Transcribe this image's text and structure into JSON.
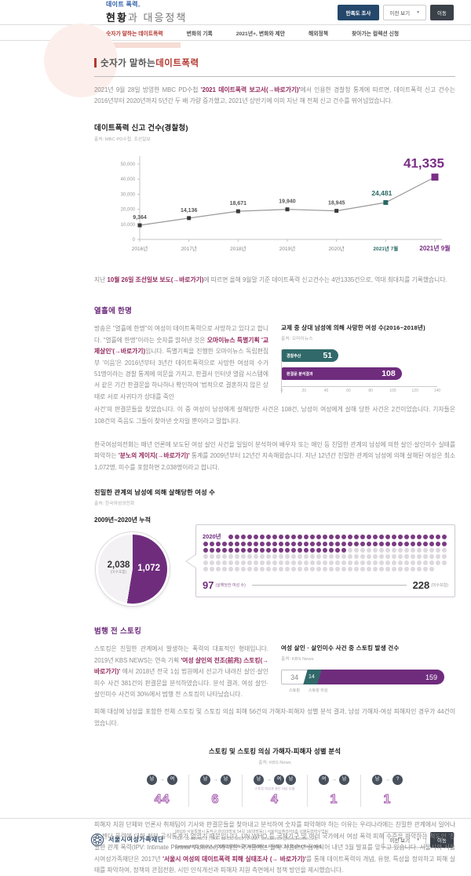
{
  "header": {
    "brand_line1": "데이트 폭력,",
    "brand_line2_strong": "현황",
    "brand_line2_rest": "과 대응정책",
    "survey_button": "만족도 조사",
    "prev_select_label": "이전 보기",
    "go_button": "이동"
  },
  "nav": {
    "items": [
      {
        "label": "숫자가 말하는 데이트폭력",
        "active": true
      },
      {
        "label": "변화의 기록",
        "active": false
      },
      {
        "label": "2021년+, 변화와 제안",
        "active": false
      },
      {
        "label": "해외정책",
        "active": false
      },
      {
        "label": "찾아가는 컬렉션 신청",
        "active": false
      }
    ]
  },
  "main": {
    "title_normal": "숫자가 말하는 ",
    "title_accent": "데이트폭력",
    "intro": [
      {
        "t": "2021년 9월 28일 방영한 MBC PD수첩 "
      },
      {
        "t": "'2021 데이트폭력 보고서(→바로가기)'",
        "b": true
      },
      {
        "t": "에서 인용한 경찰청 통계에 따르면, 데이트폭력 신고 건수는 2016년부터 2020년까지 5년간 두 배 가량 증가했고, 2021년 상반기에 이미 지난 해 전체 신고 건수를 뛰어넘었습니다."
      }
    ],
    "after_line_chart": [
      {
        "t": "지난 "
      },
      {
        "t": "10월 26일 조선일보 보도(→바로가기)",
        "b": true
      },
      {
        "t": "에 따르면 올해 9월말 기준 데이트폭력 신고건수는 4만1335건으로, 역대 최대치를 기록했습니다."
      }
    ],
    "sec_ten_days": {
      "heading": "열흘에 한명",
      "left": [
        {
          "t": "방송은 \"열흘에 한명\"의 여성이 데이트폭력으로 사망하고 있다고 합니다. \"열흘에 한명\"이라는 숫자를 밝혀낸 것은 "
        },
        {
          "t": "오마이뉴스 특별기획 '교제살인'(→바로가기)",
          "b": true
        },
        {
          "t": "입니다. 특별기획을 진행한 오마이뉴스 독립편집부 '이음'은 2016년부터 3년간 데이트폭력으로 사망한 여성의 수가 51명이라는 경찰 통계에 의문을 가지고, 판결서 인터넷 열람 시스템에서 같은 기간 판결문을 하나하나 확인하여 '법적으로 결혼하지 않은 상태로 서로 사귀다가 상대를 죽인"
        }
      ],
      "continued": "사건'의 판결문들을 찾았습니다. 이 중 여성이 남성에게 살해당한 사건은 108건, 남성이 여성에게 살해 당한 사건은 2건이었습니다. 기자들은 108건의 죽음도 그들이 찾아낸 숫자일 뿐이라고 말합니다."
    },
    "p_hotline": [
      {
        "t": "한국여성의전화는 매년 언론에 보도된 여성 살인 사건을 일일이 분석하여 배우자 또는 애인 등 친밀한 관계의 남성에 의한 살인·살인미수 실태를 파악하는 "
      },
      {
        "t": "'분노의 게이지(→바로가기)'",
        "b": true
      },
      {
        "t": " 통계를 2009년부터 12년간 지속해왔습니다. 지난 12년간 친밀한 관계의 남성에 의해 살해된 여성은 최소 1,072명, 미수를 포함하면 2,038명이라고 합니다."
      }
    ],
    "sec_stalking": {
      "heading": "범행 전 스토킹",
      "left": [
        {
          "t": "스토킹은 친밀한 관계에서 발생하는 폭력의 대표적인 형태입니다. 2019년 KBS NEWS는 연속 기획 "
        },
        {
          "t": "'여성 살인의 전조(前兆) 스토킹(→바로가기)'",
          "b": true
        },
        {
          "t": " 에서 2018년 전국 1심 법원에서 선고가 내려진 살인·살인미수 사건 381건의 판결문을 분석하였습니다. 분석 결과, 여성 살인·살인미수 사건의 30%에서 범행 전 스토킹이 나타났습니다."
        }
      ],
      "after": "피해 대상에 남성을 포함한 전체 스토킹 및 스토킹 의심 피해 56건의 가해자-피해자 성별 분석 결과, 남성 가해자-여성 피해자인 경우가 44건이었습니다."
    },
    "final": [
      {
        "t": "피해자 지원 단체와 언론사 취재팀이 기사와 판결문들을 찾아내고 분석하여 숫자를 파악해야 하는 이유는 우리나라에는 친밀한 관계에서 일어나는 젠더 폭력에 대한 정부 공식통계가 없었기 때문입니다. UN·WHO 등 국제기구 및 여러 국가에서 여성 폭력 피해 수준을 파악하는 척도인 '친밀한 관계 폭력(IPV: Intimate Partner Violence)'에 대한 국가통계는 올해 처음으로 집계되어 내년 3월 발표를 앞두고 있습니다. 서울시와 서울시여성가족재단은 2017년 "
      },
      {
        "t": "'서울시 여성의 데이트폭력 피해 실태조사 (→ 바로가기)'",
        "b": true
      },
      {
        "t": "를 통해 데이트폭력의 개념, 유형, 특성을 정의하고 피해 실태를 파악하여, 정책의 관점전환, 시민 인식개선과 피해자 지원 측면에서 정책 방안을 제시했습니다."
      }
    ]
  },
  "chart_data": [
    {
      "type": "line",
      "title": "데이트폭력 신고 건수(경찰청)",
      "source": "출처: MBC PD수첩, 조선일보",
      "categories": [
        "2016년",
        "2017년",
        "2018년",
        "2019년",
        "2020년",
        "2021년 7월",
        "2021년 9월"
      ],
      "values": [
        9364,
        14136,
        18671,
        19940,
        18945,
        24481,
        41335
      ],
      "labels": [
        "9,364",
        "14,136",
        "18,671",
        "19,940",
        "18,945",
        "24,481",
        "41,335"
      ],
      "ylim": [
        0,
        50000
      ],
      "yticks": [
        "0",
        "10,000",
        "20,000",
        "30,000",
        "40,000",
        "50,000"
      ],
      "highlight_teal_index": 5,
      "highlight_purple_index": 6
    },
    {
      "type": "hbar",
      "title": "교제 중 상대 남성에 의해 사망한 여성 수(2016~2018년)",
      "source": "출처: 오마이뉴스",
      "categories": [
        "경찰추산",
        "판결문 분석결과"
      ],
      "values": [
        51,
        108
      ],
      "colors": [
        "#31696a",
        "#6f2c7d"
      ],
      "xlim": [
        0,
        140
      ],
      "xticks": [
        0,
        20,
        40,
        60,
        80,
        100,
        120,
        140
      ]
    },
    {
      "type": "pie_waffle",
      "title": "친밀한 관계의 남성에 의해 살해당한 여성 수",
      "source": "출처: 한국여성의전화",
      "cumulative_label": "2009년~2020년 누적",
      "cumulative_total": 2038,
      "cumulative_total_label": "2,038",
      "cumulative_note": "(미수포함)",
      "killed": 1072,
      "killed_label": "1,072",
      "year": "2020년",
      "year_killed": 97,
      "year_killed_label": "97",
      "year_killed_note": "(살해당한 여성 수)",
      "year_total": 228,
      "year_total_label": "228",
      "year_total_note": "(미수포함)"
    },
    {
      "type": "stacked",
      "title": "여성 살인 · 살인미수 사건 중 스토킹 발생 건수",
      "source": "출처: KBS News",
      "segments": [
        {
          "label": "스토킹",
          "value": 34
        },
        {
          "label": "스토킹 의심",
          "value": 14
        },
        {
          "label": "",
          "value": 159
        }
      ]
    },
    {
      "type": "gender",
      "title": "스토킹 및 스토킹 의심 가해자-피해자 성별 분석",
      "source": "출처: KBS News",
      "groups": [
        {
          "from": [
            "남"
          ],
          "to": [
            "여"
          ],
          "note": "",
          "value": "44"
        },
        {
          "from": [
            "남"
          ],
          "to": [
            "남"
          ],
          "note": "",
          "value": "6"
        },
        {
          "from": [
            "남"
          ],
          "to": [
            "여",
            "남"
          ],
          "note": "스토킹 대상과 살인 대상 다름",
          "value": "4"
        },
        {
          "from": [
            "여"
          ],
          "to": [
            "남"
          ],
          "note": "",
          "value": "1"
        },
        {
          "from": [
            "남"
          ],
          "to": [
            "?"
          ],
          "note": "",
          "value": "1"
        }
      ]
    }
  ],
  "colors": {
    "accent_red": "#b5372f",
    "purple": "#6f2c7d",
    "teal": "#31696a",
    "navy": "#24476b",
    "link_maroon": "#93275c"
  },
  "footer": {
    "org_name": "서울시여성가족재단",
    "address": "06939 서울특별시 동작구 여의대방로 54길 18(대방동) | 서울여성플라자5층 성평등협력사업팀",
    "contact": "TEL : 02-810-5072 | FAX : 02-810-5003 | E-Mail : seoulwomen@seoulwomen.or.kr",
    "copyright": "Copyright(C) SEOUL FOUNDATION OF WOMEN & FAMILY. All Rights Reserved.",
    "prev_select_label": "이전 보기",
    "go_button": "이동"
  }
}
